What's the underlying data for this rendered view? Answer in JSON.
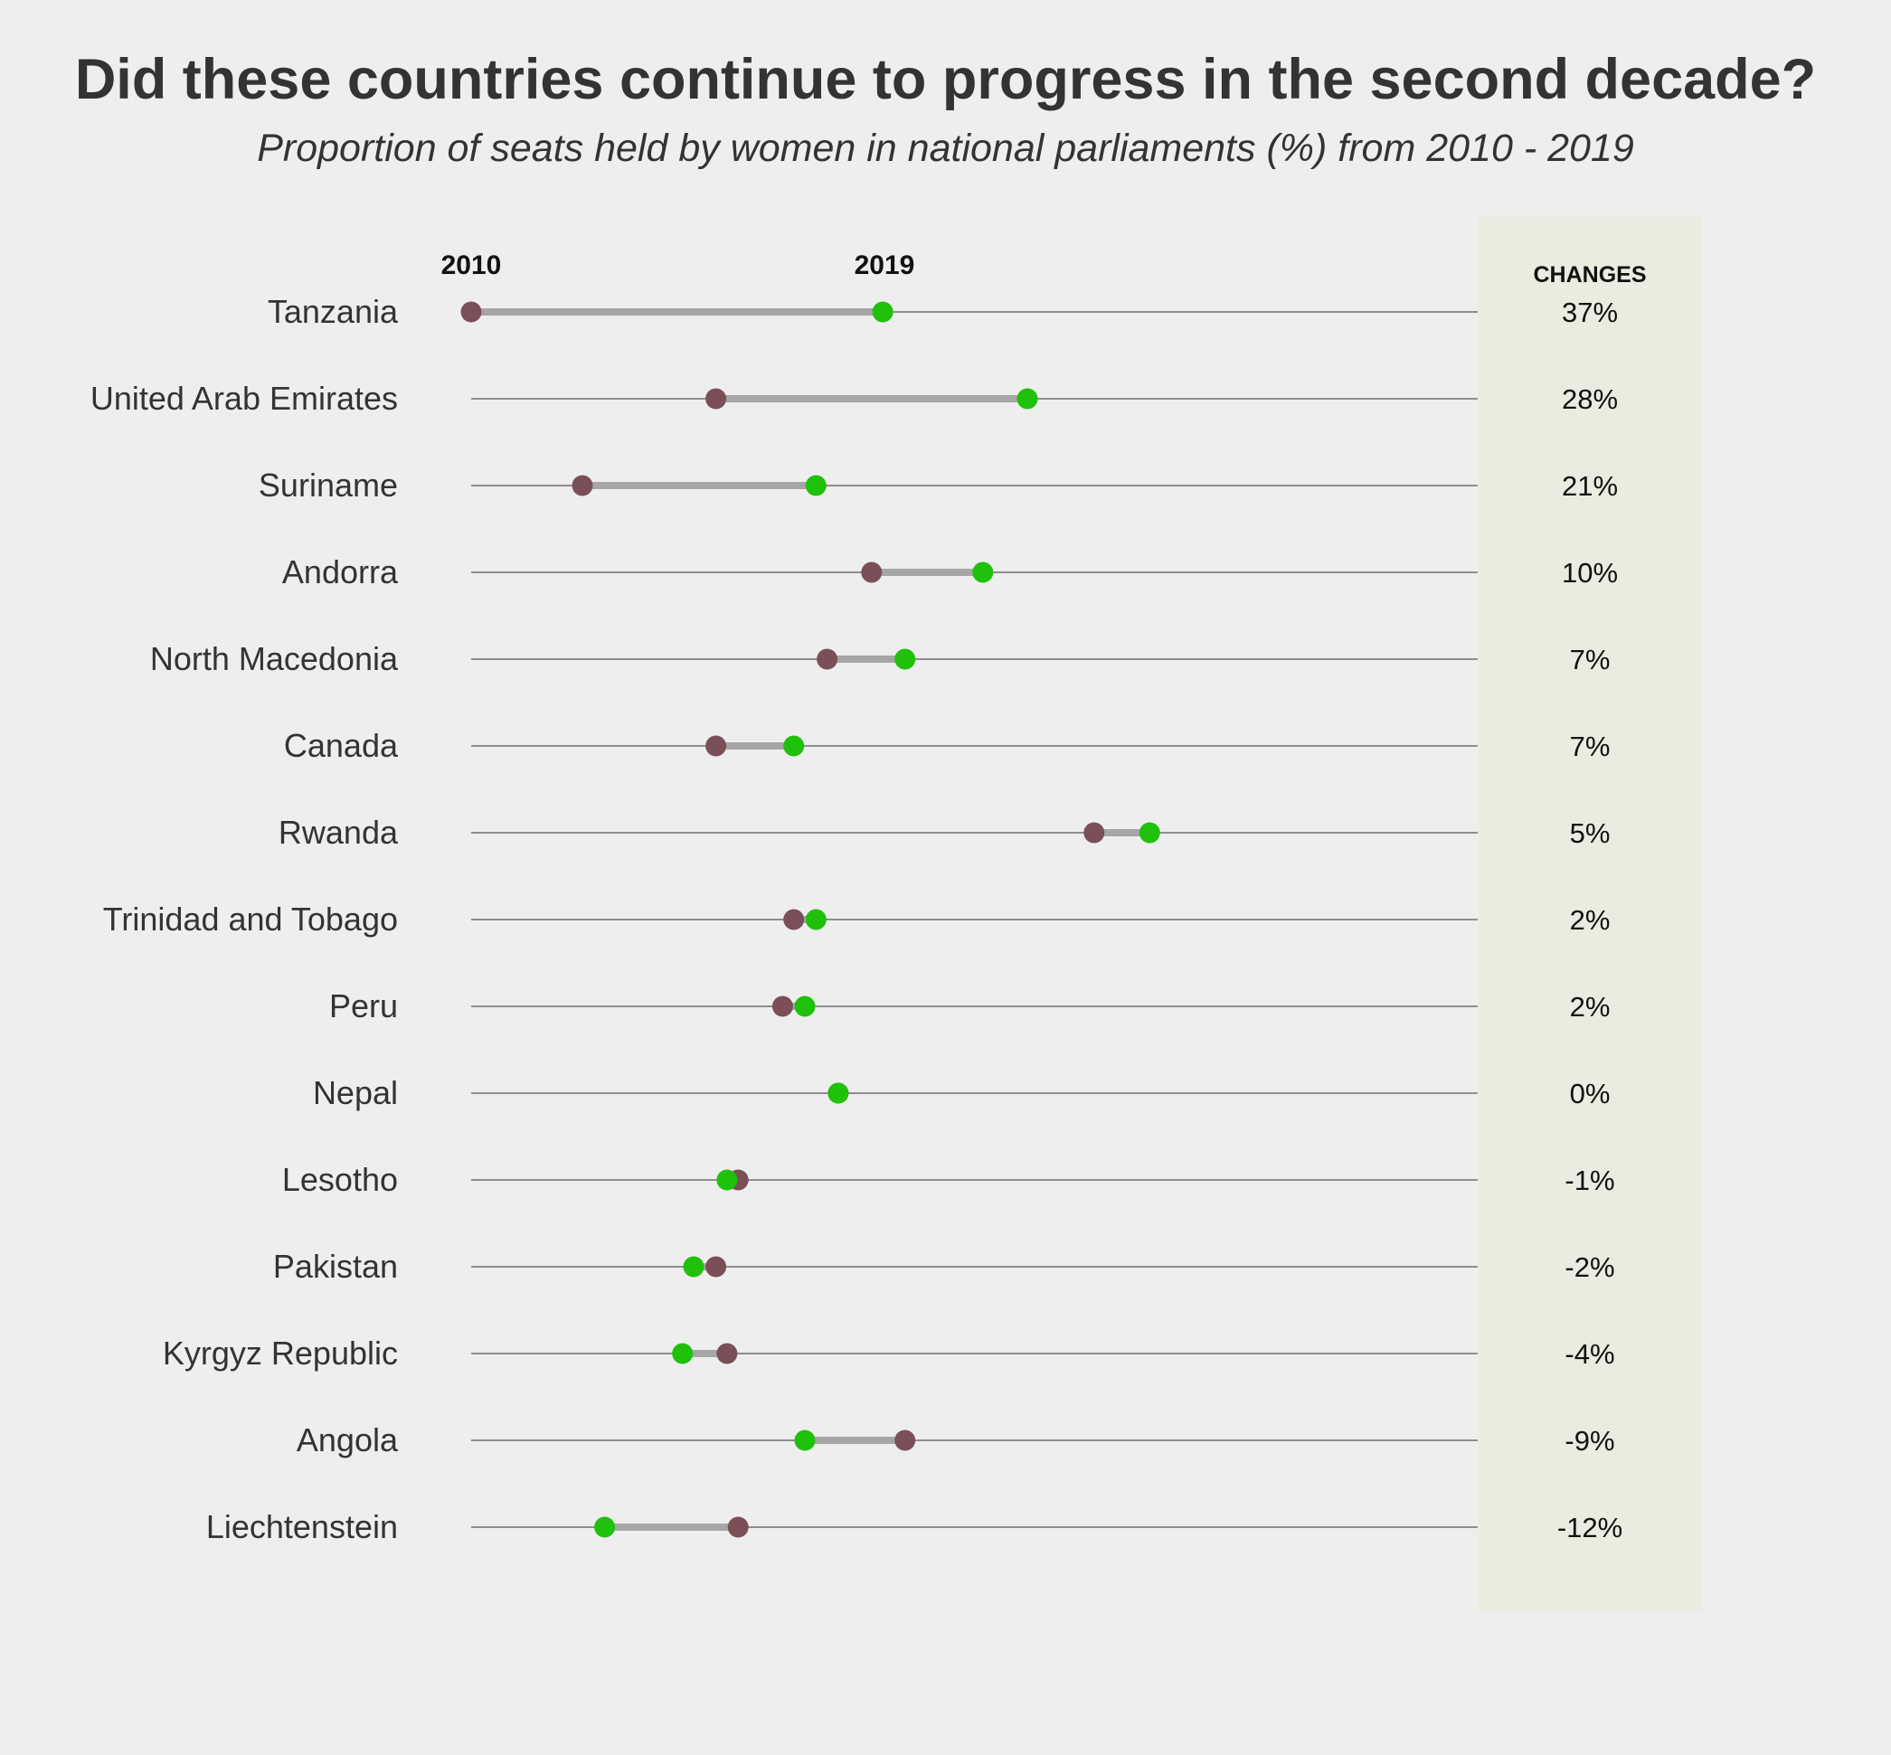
{
  "chart_data": {
    "type": "dumbbell",
    "title": "Did these countries continue to progress in the second decade?",
    "subtitle": "Proportion of seats held by women in national parliaments (%) from 2010 - 2019",
    "series_labels": {
      "start": "2010",
      "end": "2019"
    },
    "changes_header": "CHANGES",
    "xlim": [
      19,
      64
    ],
    "grid": false,
    "colors": {
      "start_point": "#7b4f57",
      "end_point": "#1fc10a",
      "connector": "#a6a6a6",
      "row_line": "#555555",
      "changes_panel": "#ebebdf"
    },
    "countries": [
      {
        "name": "Tanzania",
        "y2010": 19.0,
        "y2019": 37.5,
        "change": "37%"
      },
      {
        "name": "United Arab Emirates",
        "y2010": 30.0,
        "y2019": 44.0,
        "change": "28%"
      },
      {
        "name": "Suriname",
        "y2010": 24.0,
        "y2019": 34.5,
        "change": "21%"
      },
      {
        "name": "Andorra",
        "y2010": 37.0,
        "y2019": 42.0,
        "change": "10%"
      },
      {
        "name": "North Macedonia",
        "y2010": 35.0,
        "y2019": 38.5,
        "change": "7%"
      },
      {
        "name": "Canada",
        "y2010": 30.0,
        "y2019": 33.5,
        "change": "7%"
      },
      {
        "name": "Rwanda",
        "y2010": 47.0,
        "y2019": 49.5,
        "change": "5%"
      },
      {
        "name": "Trinidad and Tobago",
        "y2010": 33.5,
        "y2019": 34.5,
        "change": "2%"
      },
      {
        "name": "Peru",
        "y2010": 33.0,
        "y2019": 34.0,
        "change": "2%"
      },
      {
        "name": "Nepal",
        "y2010": 35.5,
        "y2019": 35.5,
        "change": "0%"
      },
      {
        "name": "Lesotho",
        "y2010": 31.0,
        "y2019": 30.5,
        "change": "-1%"
      },
      {
        "name": "Pakistan",
        "y2010": 30.0,
        "y2019": 29.0,
        "change": "-2%"
      },
      {
        "name": "Kyrgyz Republic",
        "y2010": 30.5,
        "y2019": 28.5,
        "change": "-4%"
      },
      {
        "name": "Angola",
        "y2010": 38.5,
        "y2019": 34.0,
        "change": "-9%"
      },
      {
        "name": "Liechtenstein",
        "y2010": 31.0,
        "y2019": 25.0,
        "change": "-12%"
      }
    ]
  }
}
